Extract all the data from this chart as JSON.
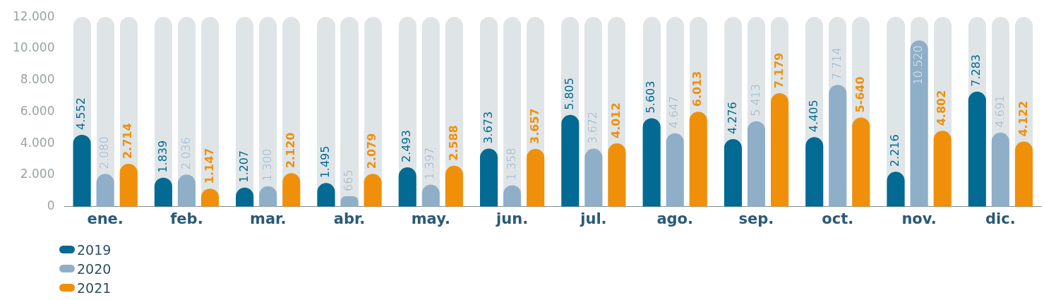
{
  "chart_data": {
    "type": "bar",
    "categories": [
      "ene.",
      "feb.",
      "mar.",
      "abr.",
      "may.",
      "jun.",
      "jul.",
      "ago.",
      "sep.",
      "oct.",
      "nov.",
      "dic."
    ],
    "series": [
      {
        "name": "2019",
        "color": "#036a93",
        "values": [
          4552,
          1839,
          1207,
          1495,
          2493,
          3673,
          5805,
          5603,
          4276,
          4405,
          2216,
          7283
        ],
        "value_labels": [
          "4.552",
          "1.839",
          "1.207",
          "1.495",
          "2.493",
          "3.673",
          "5.805",
          "5.603",
          "4.276",
          "4.405",
          "2.216",
          "7.283"
        ]
      },
      {
        "name": "2020",
        "color": "#8fafc9",
        "values": [
          2080,
          2036,
          1300,
          665,
          1397,
          1358,
          3672,
          4647,
          5413,
          7714,
          10520,
          4691
        ],
        "value_labels": [
          "2.080",
          "2.036",
          "1.300",
          "665",
          "1.397",
          "1.358",
          "3.672",
          "4.647",
          "5.413",
          "7.714",
          "10.520",
          "4.691"
        ]
      },
      {
        "name": "2021",
        "color": "#f0900a",
        "values": [
          2714,
          1147,
          2120,
          2079,
          2588,
          3657,
          4012,
          6013,
          7179,
          5640,
          4802,
          4122
        ],
        "value_labels": [
          "2.714",
          "1.147",
          "2.120",
          "2.079",
          "2.588",
          "3.657",
          "4.012",
          "6.013",
          "7.179",
          "5-640",
          "4.802",
          "4.122"
        ]
      }
    ],
    "ylim": [
      0,
      12000
    ],
    "yticks": [
      0,
      {
        "value": 2000,
        "label": "2.000"
      },
      {
        "value": 4000,
        "label": "4.000"
      },
      {
        "value": 6000,
        "label": "6.000"
      },
      {
        "value": 8000,
        "label": "8.000"
      },
      {
        "value": 10000,
        "label": "10.000"
      },
      {
        "value": 12000,
        "label": "12.000"
      }
    ],
    "grid": false,
    "legend": "bottom left"
  }
}
